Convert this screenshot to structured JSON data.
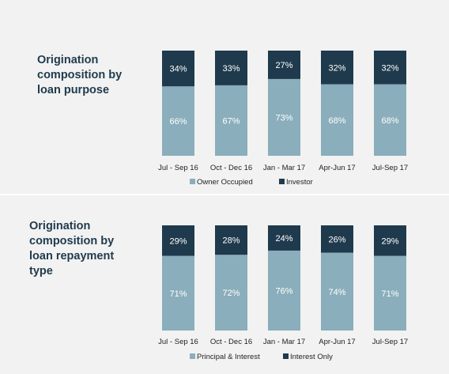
{
  "colors": {
    "owner_occupied": "#8aaebb",
    "investor": "#1f3a4d",
    "title": "#1f3a4d",
    "background": "#f2f2f2"
  },
  "chart_data": [
    {
      "type": "bar",
      "stacked": true,
      "title": "Origination\ncomposition by\nloan purpose",
      "categories": [
        "Jul - Sep 16",
        "Oct - Dec 16",
        "Jan - Mar 17",
        "Apr-Jun 17",
        "Jul-Sep 17"
      ],
      "series": [
        {
          "name": "Owner Occupied",
          "values": [
            66,
            67,
            73,
            68,
            68
          ],
          "labels": [
            "66%",
            "67%",
            "73%",
            "68%",
            "68%"
          ]
        },
        {
          "name": "Investor",
          "values": [
            34,
            33,
            27,
            32,
            32
          ],
          "labels": [
            "34%",
            "33%",
            "27%",
            "32%",
            "32%"
          ]
        }
      ],
      "ylim": [
        0,
        100
      ],
      "grid": false,
      "legend_position": "bottom"
    },
    {
      "type": "bar",
      "stacked": true,
      "title": "Origination\ncomposition by\nloan repayment\ntype",
      "categories": [
        "Jul - Sep 16",
        "Oct - Dec 16",
        "Jan - Mar 17",
        "Apr-Jun 17",
        "Jul-Sep 17"
      ],
      "series": [
        {
          "name": "Principal & Interest",
          "values": [
            71,
            72,
            76,
            74,
            71
          ],
          "labels": [
            "71%",
            "72%",
            "76%",
            "74%",
            "71%"
          ]
        },
        {
          "name": "Interest Only",
          "values": [
            29,
            28,
            24,
            26,
            29
          ],
          "labels": [
            "29%",
            "28%",
            "24%",
            "26%",
            "29%"
          ]
        }
      ],
      "ylim": [
        0,
        100
      ],
      "grid": false,
      "legend_position": "bottom"
    }
  ]
}
